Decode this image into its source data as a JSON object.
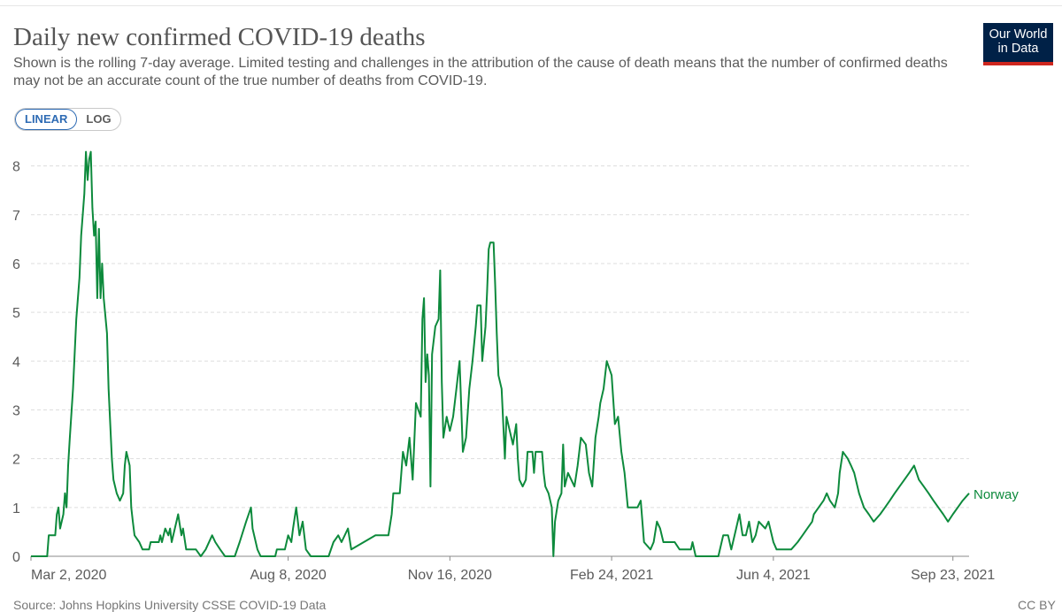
{
  "header": {
    "title": "Daily new confirmed COVID-19 deaths",
    "subtitle": "Shown is the rolling 7-day average. Limited testing and challenges in the attribution of the cause of death means that the number of confirmed deaths may not be an accurate count of the true number of deaths from COVID-19."
  },
  "logo": {
    "line1": "Our World",
    "line2": "in Data"
  },
  "scale_toggle": {
    "linear_label": "LINEAR",
    "log_label": "LOG",
    "selected": "linear"
  },
  "footer": {
    "source": "Source: Johns Hopkins University CSSE COVID-19 Data",
    "license": "CC BY"
  },
  "colors": {
    "series": "#0d8a3c",
    "grid": "#dddddd",
    "axis": "#5b5b5b"
  },
  "chart_data": {
    "type": "line",
    "title": "Daily new confirmed COVID-19 deaths",
    "xlabel": "",
    "ylabel": "",
    "ylim": [
      0,
      8
    ],
    "xlim": [
      "2020-03-02",
      "2021-10-03"
    ],
    "y_ticks": [
      0,
      1,
      2,
      3,
      4,
      5,
      6,
      7,
      8
    ],
    "x_ticks": [
      {
        "date": "2020-03-02",
        "label": "Mar 2, 2020"
      },
      {
        "date": "2020-08-08",
        "label": "Aug 8, 2020"
      },
      {
        "date": "2020-11-16",
        "label": "Nov 16, 2020"
      },
      {
        "date": "2021-02-24",
        "label": "Feb 24, 2021"
      },
      {
        "date": "2021-06-04",
        "label": "Jun 4, 2021"
      },
      {
        "date": "2021-09-23",
        "label": "Sep 23, 2021"
      }
    ],
    "grid": true,
    "legend": "end-of-line label",
    "series": [
      {
        "name": "Norway",
        "points": [
          [
            "2020-03-02",
            0
          ],
          [
            "2020-03-08",
            0
          ],
          [
            "2020-03-12",
            0
          ],
          [
            "2020-03-13",
            0.43
          ],
          [
            "2020-03-17",
            0.43
          ],
          [
            "2020-03-18",
            0.86
          ],
          [
            "2020-03-19",
            1.0
          ],
          [
            "2020-03-20",
            0.57
          ],
          [
            "2020-03-22",
            0.86
          ],
          [
            "2020-03-23",
            1.29
          ],
          [
            "2020-03-24",
            1.0
          ],
          [
            "2020-03-25",
            1.86
          ],
          [
            "2020-03-26",
            2.43
          ],
          [
            "2020-03-28",
            3.43
          ],
          [
            "2020-03-30",
            4.86
          ],
          [
            "2020-04-01",
            5.71
          ],
          [
            "2020-04-02",
            6.57
          ],
          [
            "2020-04-04",
            7.43
          ],
          [
            "2020-04-05",
            8.29
          ],
          [
            "2020-04-06",
            7.71
          ],
          [
            "2020-04-07",
            8.14
          ],
          [
            "2020-04-08",
            8.29
          ],
          [
            "2020-04-09",
            7.14
          ],
          [
            "2020-04-10",
            6.57
          ],
          [
            "2020-04-11",
            6.86
          ],
          [
            "2020-04-12",
            5.29
          ],
          [
            "2020-04-13",
            6.71
          ],
          [
            "2020-04-14",
            5.29
          ],
          [
            "2020-04-15",
            6.0
          ],
          [
            "2020-04-16",
            5.29
          ],
          [
            "2020-04-18",
            4.57
          ],
          [
            "2020-04-19",
            3.43
          ],
          [
            "2020-04-21",
            2.0
          ],
          [
            "2020-04-22",
            1.57
          ],
          [
            "2020-04-24",
            1.29
          ],
          [
            "2020-04-26",
            1.14
          ],
          [
            "2020-04-28",
            1.29
          ],
          [
            "2020-04-29",
            1.86
          ],
          [
            "2020-04-30",
            2.14
          ],
          [
            "2020-05-02",
            1.86
          ],
          [
            "2020-05-03",
            1.0
          ],
          [
            "2020-05-04",
            0.71
          ],
          [
            "2020-05-05",
            0.43
          ],
          [
            "2020-05-08",
            0.29
          ],
          [
            "2020-05-10",
            0.14
          ],
          [
            "2020-05-14",
            0.14
          ],
          [
            "2020-05-15",
            0.29
          ],
          [
            "2020-05-20",
            0.29
          ],
          [
            "2020-05-21",
            0.43
          ],
          [
            "2020-05-22",
            0.29
          ],
          [
            "2020-05-24",
            0.57
          ],
          [
            "2020-05-26",
            0.43
          ],
          [
            "2020-05-27",
            0.57
          ],
          [
            "2020-05-28",
            0.29
          ],
          [
            "2020-06-01",
            0.86
          ],
          [
            "2020-06-03",
            0.43
          ],
          [
            "2020-06-04",
            0.57
          ],
          [
            "2020-06-06",
            0.14
          ],
          [
            "2020-06-12",
            0.14
          ],
          [
            "2020-06-15",
            0
          ],
          [
            "2020-06-18",
            0.14
          ],
          [
            "2020-06-22",
            0.43
          ],
          [
            "2020-06-24",
            0.29
          ],
          [
            "2020-06-27",
            0.14
          ],
          [
            "2020-06-30",
            0
          ],
          [
            "2020-07-06",
            0
          ],
          [
            "2020-07-09",
            0.29
          ],
          [
            "2020-07-13",
            0.71
          ],
          [
            "2020-07-16",
            1.0
          ],
          [
            "2020-07-17",
            0.57
          ],
          [
            "2020-07-20",
            0.14
          ],
          [
            "2020-07-22",
            0
          ],
          [
            "2020-07-31",
            0
          ],
          [
            "2020-08-01",
            0.14
          ],
          [
            "2020-08-06",
            0.14
          ],
          [
            "2020-08-08",
            0.43
          ],
          [
            "2020-08-10",
            0.29
          ],
          [
            "2020-08-11",
            0.57
          ],
          [
            "2020-08-13",
            1.0
          ],
          [
            "2020-08-15",
            0.43
          ],
          [
            "2020-08-17",
            0.71
          ],
          [
            "2020-08-19",
            0.14
          ],
          [
            "2020-08-22",
            0
          ],
          [
            "2020-09-02",
            0
          ],
          [
            "2020-09-05",
            0.29
          ],
          [
            "2020-09-08",
            0.43
          ],
          [
            "2020-09-10",
            0.29
          ],
          [
            "2020-09-14",
            0.57
          ],
          [
            "2020-09-16",
            0.14
          ],
          [
            "2020-10-01",
            0.43
          ],
          [
            "2020-10-09",
            0.43
          ],
          [
            "2020-10-11",
            0.86
          ],
          [
            "2020-10-12",
            1.29
          ],
          [
            "2020-10-16",
            1.29
          ],
          [
            "2020-10-18",
            2.14
          ],
          [
            "2020-10-20",
            1.86
          ],
          [
            "2020-10-22",
            2.43
          ],
          [
            "2020-10-24",
            1.57
          ],
          [
            "2020-10-26",
            3.14
          ],
          [
            "2020-10-29",
            2.86
          ],
          [
            "2020-10-30",
            4.86
          ],
          [
            "2020-10-31",
            5.29
          ],
          [
            "2020-11-01",
            3.57
          ],
          [
            "2020-11-02",
            4.14
          ],
          [
            "2020-11-03",
            3.71
          ],
          [
            "2020-11-04",
            1.43
          ],
          [
            "2020-11-05",
            4.14
          ],
          [
            "2020-11-07",
            4.71
          ],
          [
            "2020-11-09",
            4.86
          ],
          [
            "2020-11-10",
            5.86
          ],
          [
            "2020-11-11",
            3.57
          ],
          [
            "2020-11-12",
            2.43
          ],
          [
            "2020-11-14",
            2.86
          ],
          [
            "2020-11-16",
            2.57
          ],
          [
            "2020-11-18",
            2.86
          ],
          [
            "2020-11-20",
            3.43
          ],
          [
            "2020-11-22",
            4.0
          ],
          [
            "2020-11-24",
            2.14
          ],
          [
            "2020-11-26",
            2.43
          ],
          [
            "2020-11-28",
            3.43
          ],
          [
            "2020-11-30",
            4.0
          ],
          [
            "2020-12-02",
            4.71
          ],
          [
            "2020-12-03",
            5.14
          ],
          [
            "2020-12-05",
            5.14
          ],
          [
            "2020-12-06",
            4.0
          ],
          [
            "2020-12-08",
            4.71
          ],
          [
            "2020-12-09",
            5.43
          ],
          [
            "2020-12-10",
            6.29
          ],
          [
            "2020-12-11",
            6.43
          ],
          [
            "2020-12-13",
            6.43
          ],
          [
            "2020-12-14",
            5.57
          ],
          [
            "2020-12-15",
            4.57
          ],
          [
            "2020-12-16",
            3.71
          ],
          [
            "2020-12-18",
            3.43
          ],
          [
            "2020-12-20",
            2.0
          ],
          [
            "2020-12-21",
            2.86
          ],
          [
            "2020-12-23",
            2.57
          ],
          [
            "2020-12-25",
            2.29
          ],
          [
            "2020-12-27",
            2.71
          ],
          [
            "2020-12-28",
            2.0
          ],
          [
            "2020-12-29",
            1.57
          ],
          [
            "2020-12-31",
            1.43
          ],
          [
            "2021-01-02",
            1.57
          ],
          [
            "2021-01-03",
            2.14
          ],
          [
            "2021-01-06",
            2.14
          ],
          [
            "2021-01-07",
            1.71
          ],
          [
            "2021-01-08",
            2.14
          ],
          [
            "2021-01-12",
            2.14
          ],
          [
            "2021-01-13",
            1.71
          ],
          [
            "2021-01-14",
            1.43
          ],
          [
            "2021-01-16",
            1.29
          ],
          [
            "2021-01-18",
            1.0
          ],
          [
            "2021-01-19",
            0
          ],
          [
            "2021-01-20",
            0.71
          ],
          [
            "2021-01-22",
            1.14
          ],
          [
            "2021-01-24",
            1.29
          ],
          [
            "2021-01-25",
            2.29
          ],
          [
            "2021-01-26",
            1.43
          ],
          [
            "2021-01-28",
            1.71
          ],
          [
            "2021-02-01",
            1.43
          ],
          [
            "2021-02-03",
            1.86
          ],
          [
            "2021-02-05",
            2.43
          ],
          [
            "2021-02-08",
            2.29
          ],
          [
            "2021-02-10",
            1.71
          ],
          [
            "2021-02-12",
            1.43
          ],
          [
            "2021-02-14",
            2.43
          ],
          [
            "2021-02-16",
            2.86
          ],
          [
            "2021-02-17",
            3.14
          ],
          [
            "2021-02-19",
            3.43
          ],
          [
            "2021-02-21",
            4.0
          ],
          [
            "2021-02-24",
            3.71
          ],
          [
            "2021-02-26",
            2.71
          ],
          [
            "2021-02-28",
            2.86
          ],
          [
            "2021-03-02",
            2.14
          ],
          [
            "2021-03-04",
            1.71
          ],
          [
            "2021-03-06",
            1.0
          ],
          [
            "2021-03-12",
            1.0
          ],
          [
            "2021-03-14",
            1.14
          ],
          [
            "2021-03-16",
            0.29
          ],
          [
            "2021-03-20",
            0.14
          ],
          [
            "2021-03-22",
            0.29
          ],
          [
            "2021-03-24",
            0.71
          ],
          [
            "2021-03-26",
            0.57
          ],
          [
            "2021-03-28",
            0.29
          ],
          [
            "2021-04-04",
            0.29
          ],
          [
            "2021-04-07",
            0.14
          ],
          [
            "2021-04-14",
            0.14
          ],
          [
            "2021-04-15",
            0.29
          ],
          [
            "2021-04-17",
            0
          ],
          [
            "2021-05-01",
            0
          ],
          [
            "2021-05-04",
            0.43
          ],
          [
            "2021-05-07",
            0.43
          ],
          [
            "2021-05-09",
            0.14
          ],
          [
            "2021-05-12",
            0.57
          ],
          [
            "2021-05-14",
            0.86
          ],
          [
            "2021-05-16",
            0.43
          ],
          [
            "2021-05-18",
            0.43
          ],
          [
            "2021-05-20",
            0.71
          ],
          [
            "2021-05-22",
            0.29
          ],
          [
            "2021-05-24",
            0.43
          ],
          [
            "2021-05-26",
            0.71
          ],
          [
            "2021-05-30",
            0.57
          ],
          [
            "2021-06-01",
            0.71
          ],
          [
            "2021-06-04",
            0.29
          ],
          [
            "2021-06-06",
            0.14
          ],
          [
            "2021-06-15",
            0.14
          ],
          [
            "2021-06-19",
            0.29
          ],
          [
            "2021-06-22",
            0.43
          ],
          [
            "2021-06-25",
            0.57
          ],
          [
            "2021-06-28",
            0.71
          ],
          [
            "2021-06-29",
            0.86
          ],
          [
            "2021-07-02",
            1.0
          ],
          [
            "2021-07-05",
            1.14
          ],
          [
            "2021-07-07",
            1.29
          ],
          [
            "2021-07-09",
            1.14
          ],
          [
            "2021-07-12",
            1.0
          ],
          [
            "2021-07-14",
            1.29
          ],
          [
            "2021-07-15",
            1.71
          ],
          [
            "2021-07-17",
            2.14
          ],
          [
            "2021-07-20",
            2.0
          ],
          [
            "2021-07-22",
            1.86
          ],
          [
            "2021-07-24",
            1.71
          ],
          [
            "2021-07-27",
            1.29
          ],
          [
            "2021-07-30",
            1.0
          ],
          [
            "2021-08-02",
            0.86
          ],
          [
            "2021-08-05",
            0.71
          ],
          [
            "2021-08-09",
            0.86
          ],
          [
            "2021-08-12",
            1.0
          ],
          [
            "2021-08-15",
            1.14
          ],
          [
            "2021-08-18",
            1.29
          ],
          [
            "2021-08-21",
            1.43
          ],
          [
            "2021-08-24",
            1.57
          ],
          [
            "2021-08-27",
            1.71
          ],
          [
            "2021-08-30",
            1.86
          ],
          [
            "2021-09-02",
            1.57
          ],
          [
            "2021-09-05",
            1.43
          ],
          [
            "2021-09-08",
            1.29
          ],
          [
            "2021-09-11",
            1.14
          ],
          [
            "2021-09-14",
            1.0
          ],
          [
            "2021-09-17",
            0.86
          ],
          [
            "2021-09-20",
            0.71
          ],
          [
            "2021-09-23",
            0.86
          ],
          [
            "2021-09-26",
            1.0
          ],
          [
            "2021-09-29",
            1.14
          ],
          [
            "2021-10-03",
            1.29
          ]
        ]
      }
    ]
  }
}
